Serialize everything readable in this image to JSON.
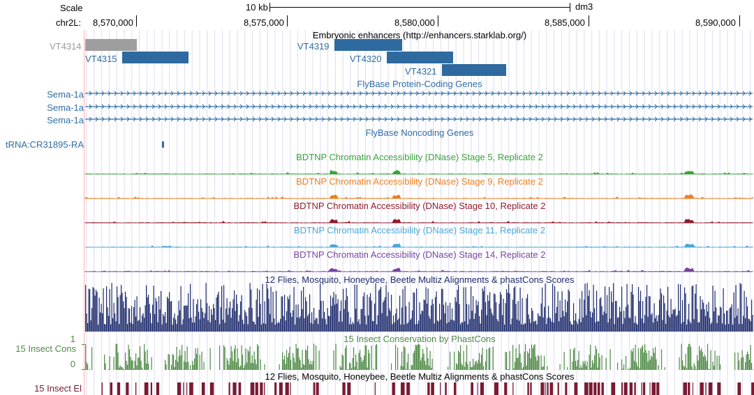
{
  "header": {
    "scale_label": "Scale",
    "scale_bar_label": "10 kb",
    "assembly": "dm3",
    "chrom_label": "chr2L:",
    "positions": [
      "8,570,000",
      "8,575,000",
      "8,580,000",
      "8,585,000",
      "8,590,000"
    ]
  },
  "tracks": {
    "enhancers": {
      "title": "Embryonic enhancers (http://enhancers.starklab.org/)",
      "items": [
        {
          "label": "VT4314",
          "hidden_state": "gray"
        },
        {
          "label": "VT4315"
        },
        {
          "label": "VT4319"
        },
        {
          "label": "VT4320"
        },
        {
          "label": "VT4321"
        }
      ]
    },
    "protein_genes": {
      "title": "FlyBase Protein-Coding Genes",
      "genes": [
        "Sema-1a",
        "Sema-1a",
        "Sema-1a"
      ]
    },
    "noncoding_genes": {
      "title": "FlyBase Noncoding Genes",
      "genes": [
        "tRNA:CR31895-RA"
      ]
    },
    "dnase": [
      {
        "title": "BDTNP Chromatin Accessibility (DNase) Stage 5, Replicate 2",
        "color": "#3aa33a"
      },
      {
        "title": "BDTNP Chromatin Accessibility (DNase) Stage 9, Replicate 2",
        "color": "#ee7f1e"
      },
      {
        "title": "BDTNP Chromatin Accessibility (DNase) Stage 10, Replicate 2",
        "color": "#8e1c2b"
      },
      {
        "title": "BDTNP Chromatin Accessibility (DNase) Stage 11, Replicate 2",
        "color": "#4aa8d6"
      },
      {
        "title": "BDTNP Chromatin Accessibility (DNase) Stage 14, Replicate 2",
        "color": "#7744a3"
      }
    ],
    "multiz": {
      "title": "12 Flies, Mosquito, Honeybee, Beetle Multiz Alignments & phastCons Scores",
      "color": "#1c2a6b"
    },
    "insect_cons": {
      "title": "15 Insect Conservation by PhastCons",
      "side_label": "15 Insect Cons",
      "axis_max": "1",
      "axis_min": "0",
      "color": "#4e8a45"
    },
    "insect_el": {
      "title": "12 Flies, Mosquito, Honeybee, Beetle Multiz Alignments & phastCons Scores",
      "side_label": "15 Insect El",
      "color": "#7a1a33"
    }
  },
  "colors": {
    "gene_blue": "#2e6da4",
    "gridline": "#dcdcf4",
    "highlight_line": "#ffb0b0"
  }
}
